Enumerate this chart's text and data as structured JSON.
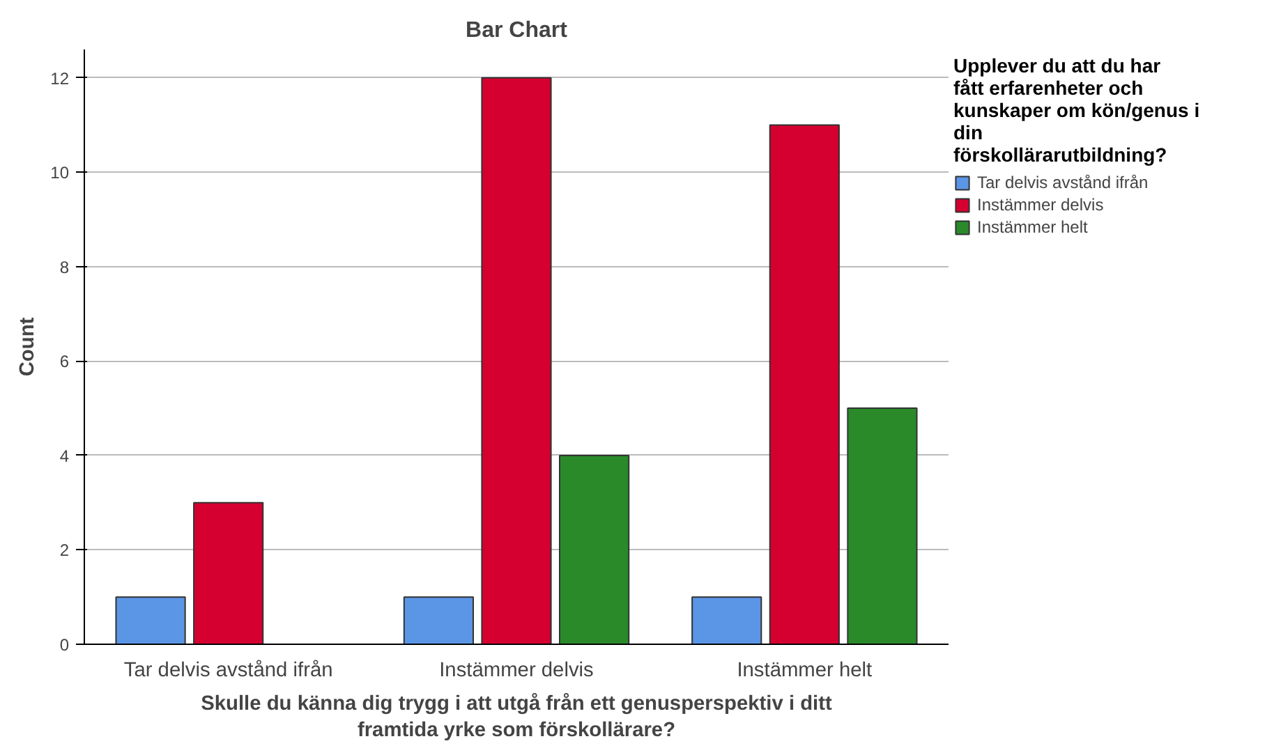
{
  "chart_data": {
    "type": "bar",
    "title": "Bar Chart",
    "xlabel": "Skulle du känna dig trygg i att utgå från ett genusperspektiv i ditt framtida yrke som förskollärare?",
    "ylabel": "Count",
    "legend_title": "Upplever du att du har fått erfarenheter och kunskaper om kön/genus i din förskollärarutbildning?",
    "categories": [
      "Tar delvis avstånd ifrån",
      "Instämmer delvis",
      "Instämmer helt"
    ],
    "series": [
      {
        "name": "Tar delvis avstånd ifrån",
        "color": "#5b95e5",
        "values": [
          1,
          1,
          1
        ]
      },
      {
        "name": "Instämmer delvis",
        "color": "#d5002f",
        "values": [
          3,
          12,
          11
        ]
      },
      {
        "name": "Instämmer helt",
        "color": "#2a8a2a",
        "values": [
          null,
          4,
          5
        ]
      }
    ],
    "ylim": [
      0,
      12.6
    ],
    "yticks": [
      0,
      2,
      4,
      6,
      8,
      10,
      12
    ],
    "grid": "y",
    "legend": "right"
  }
}
